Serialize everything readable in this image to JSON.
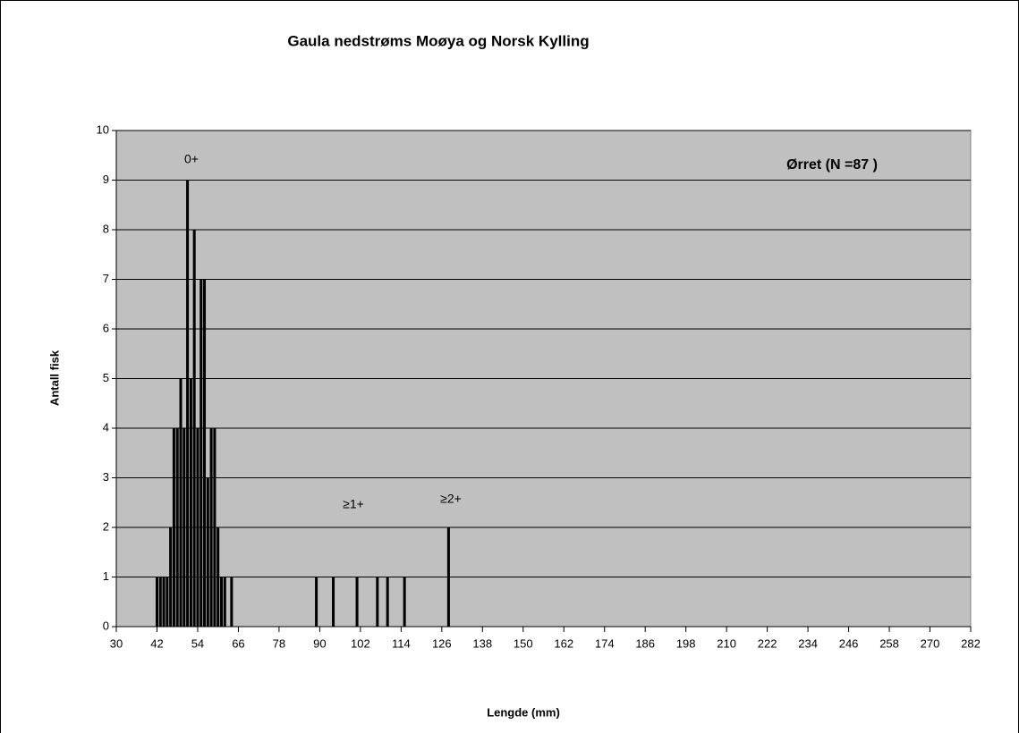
{
  "chart_data": {
    "type": "bar",
    "title": "Gaula nedstrøms Moøya og Norsk Kylling",
    "x_label": "Lengde (mm)",
    "y_label": "Antall fisk",
    "annotations": [
      "0+",
      "≥1+",
      "≥2+",
      "Ørret (N =87 )"
    ],
    "x": [
      42,
      43,
      44,
      45,
      46,
      47,
      48,
      49,
      50,
      51,
      52,
      53,
      54,
      55,
      56,
      57,
      58,
      59,
      60,
      61,
      62,
      64,
      89,
      94,
      101,
      107,
      110,
      115,
      128
    ],
    "values": [
      1,
      1,
      1,
      1,
      2,
      4,
      4,
      5,
      4,
      9,
      5,
      8,
      4,
      7,
      7,
      3,
      4,
      4,
      2,
      1,
      1,
      1,
      1,
      1,
      1,
      1,
      1,
      1,
      2
    ],
    "color": "#000000",
    "background": "#c0c0c0",
    "xlim": [
      30,
      282
    ],
    "xticks": [
      30,
      42,
      54,
      66,
      78,
      90,
      102,
      114,
      126,
      138,
      150,
      162,
      174,
      186,
      198,
      210,
      222,
      234,
      246,
      258,
      270,
      282
    ],
    "ylim": [
      0,
      10
    ],
    "yticks": [
      0,
      1,
      2,
      3,
      4,
      5,
      6,
      7,
      8,
      9,
      10
    ],
    "grid": true
  }
}
